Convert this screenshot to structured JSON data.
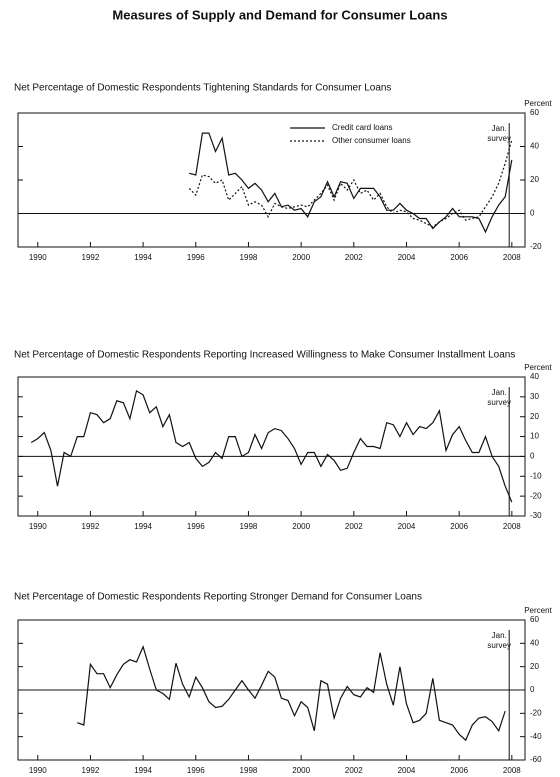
{
  "title": "Measures of Supply and Demand for Consumer Loans",
  "chart_data": [
    {
      "type": "line",
      "title": "Net Percentage of Domestic Respondents Tightening Standards for Consumer Loans",
      "y_label": "Percent",
      "annotation": [
        "Jan.",
        "survey"
      ],
      "marker_x": 2007.9,
      "xlim": [
        1989.25,
        2008.5
      ],
      "xticks": [
        1990,
        1992,
        1994,
        1996,
        1998,
        2000,
        2002,
        2004,
        2006,
        2008
      ],
      "ylim": [
        -20,
        60
      ],
      "yticks": [
        -20,
        0,
        20,
        40,
        60
      ],
      "x": [
        1995.75,
        1996,
        1996.25,
        1996.5,
        1996.75,
        1997,
        1997.25,
        1997.5,
        1997.75,
        1998,
        1998.25,
        1998.5,
        1998.75,
        1999,
        1999.25,
        1999.5,
        1999.75,
        2000,
        2000.25,
        2000.5,
        2000.75,
        2001,
        2001.25,
        2001.5,
        2001.75,
        2002,
        2002.25,
        2002.5,
        2002.75,
        2003,
        2003.25,
        2003.5,
        2003.75,
        2004,
        2004.25,
        2004.5,
        2004.75,
        2005,
        2005.25,
        2005.5,
        2005.75,
        2006,
        2006.25,
        2006.5,
        2006.75,
        2007,
        2007.25,
        2007.5,
        2007.75,
        2008
      ],
      "series": [
        {
          "name": "Credit card loans",
          "color": "#111111",
          "dash": false,
          "values": [
            24,
            23,
            48,
            48,
            37,
            45,
            23,
            24,
            20,
            15,
            18,
            14,
            7,
            12,
            4,
            5,
            2,
            3,
            -2,
            7,
            10,
            19,
            10,
            19,
            18,
            9,
            15,
            15,
            15,
            10,
            2,
            2,
            6,
            2,
            0,
            -3,
            -3,
            -9,
            -5,
            -2,
            3,
            -2,
            -2,
            -2,
            -3,
            -11,
            -2,
            5,
            10,
            32
          ]
        },
        {
          "name": "Other consumer loans",
          "color": "#111111",
          "dash": true,
          "values": [
            15,
            11,
            23,
            22,
            18,
            20,
            8,
            12,
            16,
            5,
            7,
            5,
            -2,
            6,
            4,
            3,
            4,
            5,
            4,
            8,
            12,
            17,
            8,
            18,
            14,
            20,
            12,
            14,
            8,
            12,
            4,
            0,
            2,
            1,
            -3,
            -4,
            -6,
            -8,
            -5,
            -3,
            0,
            2,
            -4,
            -3,
            -2,
            4,
            10,
            18,
            30,
            44
          ]
        }
      ]
    },
    {
      "type": "line",
      "title": "Net Percentage of Domestic Respondents Reporting Increased Willingness to Make Consumer Installment Loans",
      "y_label": "Percent",
      "annotation": [
        "Jan.",
        "survey"
      ],
      "marker_x": 2007.9,
      "xlim": [
        1989.25,
        2008.5
      ],
      "xticks": [
        1990,
        1992,
        1994,
        1996,
        1998,
        2000,
        2002,
        2004,
        2006,
        2008
      ],
      "ylim": [
        -30,
        40
      ],
      "yticks": [
        -30,
        -20,
        -10,
        0,
        10,
        20,
        30,
        40
      ],
      "x": [
        1989.75,
        1990,
        1990.25,
        1990.5,
        1990.75,
        1991,
        1991.25,
        1991.5,
        1991.75,
        1992,
        1992.25,
        1992.5,
        1992.75,
        1993,
        1993.25,
        1993.5,
        1993.75,
        1994,
        1994.25,
        1994.5,
        1994.75,
        1995,
        1995.25,
        1995.5,
        1995.75,
        1996,
        1996.25,
        1996.5,
        1996.75,
        1997,
        1997.25,
        1997.5,
        1997.75,
        1998,
        1998.25,
        1998.5,
        1998.75,
        1999,
        1999.25,
        1999.5,
        1999.75,
        2000,
        2000.25,
        2000.5,
        2000.75,
        2001,
        2001.25,
        2001.5,
        2001.75,
        2002,
        2002.25,
        2002.5,
        2002.75,
        2003,
        2003.25,
        2003.5,
        2003.75,
        2004,
        2004.25,
        2004.5,
        2004.75,
        2005,
        2005.25,
        2005.5,
        2005.75,
        2006,
        2006.25,
        2006.5,
        2006.75,
        2007,
        2007.25,
        2007.5,
        2007.75,
        2008
      ],
      "series": [
        {
          "color": "#111111",
          "dash": false,
          "values": [
            7,
            9,
            12,
            3,
            -15,
            2,
            0,
            10,
            10,
            22,
            21,
            17,
            19,
            28,
            27,
            19,
            33,
            31,
            22,
            25,
            15,
            21,
            7,
            5,
            7,
            -1,
            -5,
            -3,
            2,
            -1,
            10,
            10,
            0,
            2,
            11,
            4,
            12,
            14,
            13,
            9,
            4,
            -4,
            2,
            2,
            -5,
            1,
            -2,
            -7,
            -6,
            2,
            9,
            5,
            5,
            4,
            17,
            16,
            10,
            17,
            11,
            15,
            14,
            17,
            23,
            3,
            11,
            15,
            8,
            2,
            2,
            10,
            0,
            -5,
            -15,
            -23
          ]
        }
      ]
    },
    {
      "type": "line",
      "title": "Net Percentage of Domestic Respondents Reporting Stronger Demand for Consumer Loans",
      "y_label": "Percent",
      "annotation": [
        "Jan.",
        "survey"
      ],
      "marker_x": 2007.9,
      "xlim": [
        1989.25,
        2008.5
      ],
      "xticks": [
        1990,
        1992,
        1994,
        1996,
        1998,
        2000,
        2002,
        2004,
        2006,
        2008
      ],
      "ylim": [
        -60,
        60
      ],
      "yticks": [
        -60,
        -40,
        -20,
        0,
        20,
        40,
        60
      ],
      "x": [
        1991.5,
        1991.75,
        1992,
        1992.25,
        1992.5,
        1992.75,
        1993,
        1993.25,
        1993.5,
        1993.75,
        1994,
        1994.25,
        1994.5,
        1994.75,
        1995,
        1995.25,
        1995.5,
        1995.75,
        1996,
        1996.25,
        1996.5,
        1996.75,
        1997,
        1997.25,
        1997.5,
        1997.75,
        1998,
        1998.25,
        1998.5,
        1998.75,
        1999,
        1999.25,
        1999.5,
        1999.75,
        2000,
        2000.25,
        2000.5,
        2000.75,
        2001,
        2001.25,
        2001.5,
        2001.75,
        2002,
        2002.25,
        2002.5,
        2002.75,
        2003,
        2003.25,
        2003.5,
        2003.75,
        2004,
        2004.25,
        2004.5,
        2004.75,
        2005,
        2005.25,
        2005.5,
        2005.75,
        2006,
        2006.25,
        2006.5,
        2006.75,
        2007,
        2007.25,
        2007.5,
        2007.75
      ],
      "series": [
        {
          "color": "#111111",
          "dash": false,
          "values": [
            -28,
            -30,
            22,
            14,
            14,
            2,
            13,
            22,
            26,
            24,
            37,
            18,
            0,
            -3,
            -8,
            23,
            5,
            -6,
            11,
            2,
            -10,
            -15,
            -14,
            -8,
            0,
            8,
            0,
            -7,
            4,
            16,
            11,
            -7,
            -9,
            -22,
            -10,
            -15,
            -35,
            8,
            5,
            -24,
            -7,
            3,
            -4,
            -6,
            2,
            -2,
            32,
            5,
            -13,
            20,
            -12,
            -28,
            -26,
            -20,
            10,
            -26,
            -28,
            -30,
            -38,
            -43,
            -30,
            -24,
            -23,
            -27,
            -35,
            -18
          ]
        }
      ]
    }
  ]
}
